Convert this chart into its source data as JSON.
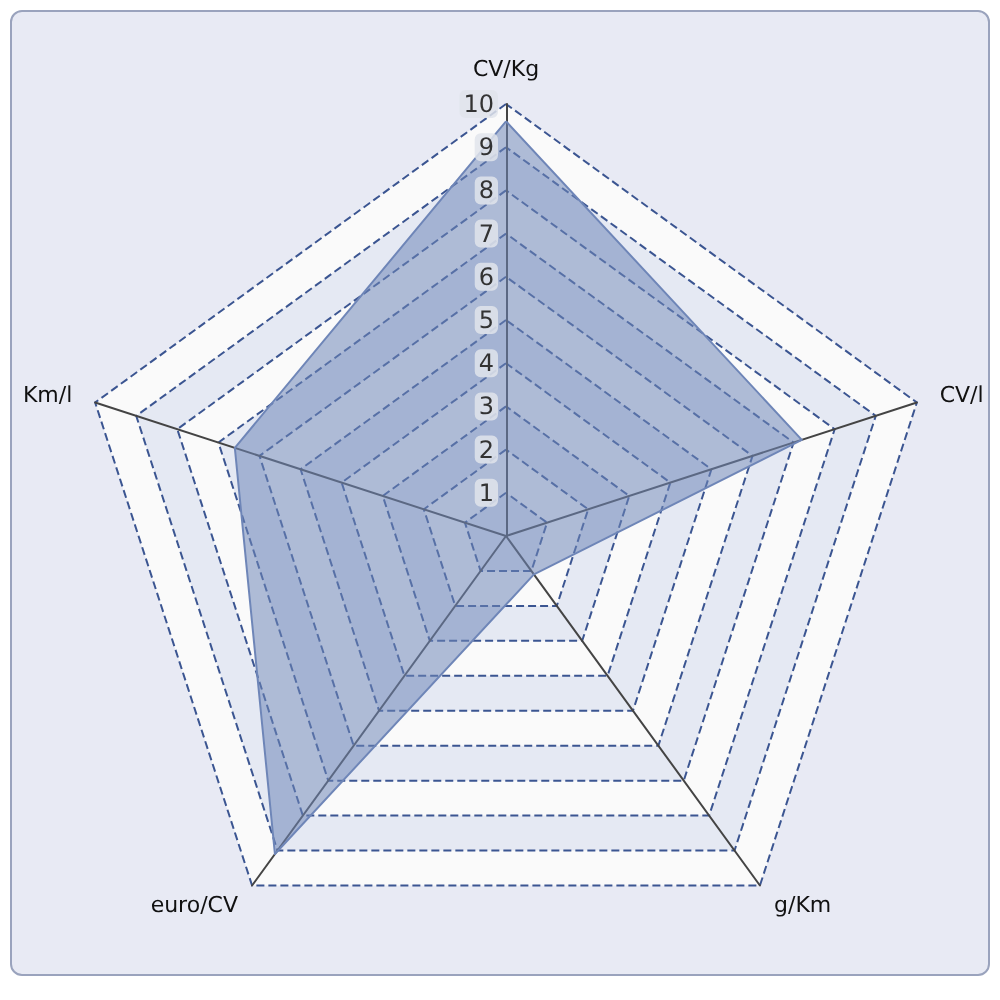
{
  "chart_data": {
    "type": "radar",
    "categories": [
      "CV/Kg",
      "CV/l",
      "g/Km",
      "euro/CV",
      "Km/l"
    ],
    "series": [
      {
        "color": "#6f86b8",
        "values": [
          9.6,
          7.2,
          1.1,
          9.1,
          6.6
        ]
      }
    ],
    "ylim": [
      0,
      10
    ],
    "yticks": [
      1,
      2,
      3,
      4,
      5,
      6,
      7,
      8,
      9,
      10
    ],
    "grid": true,
    "marker": "none",
    "line_style": "solid"
  }
}
